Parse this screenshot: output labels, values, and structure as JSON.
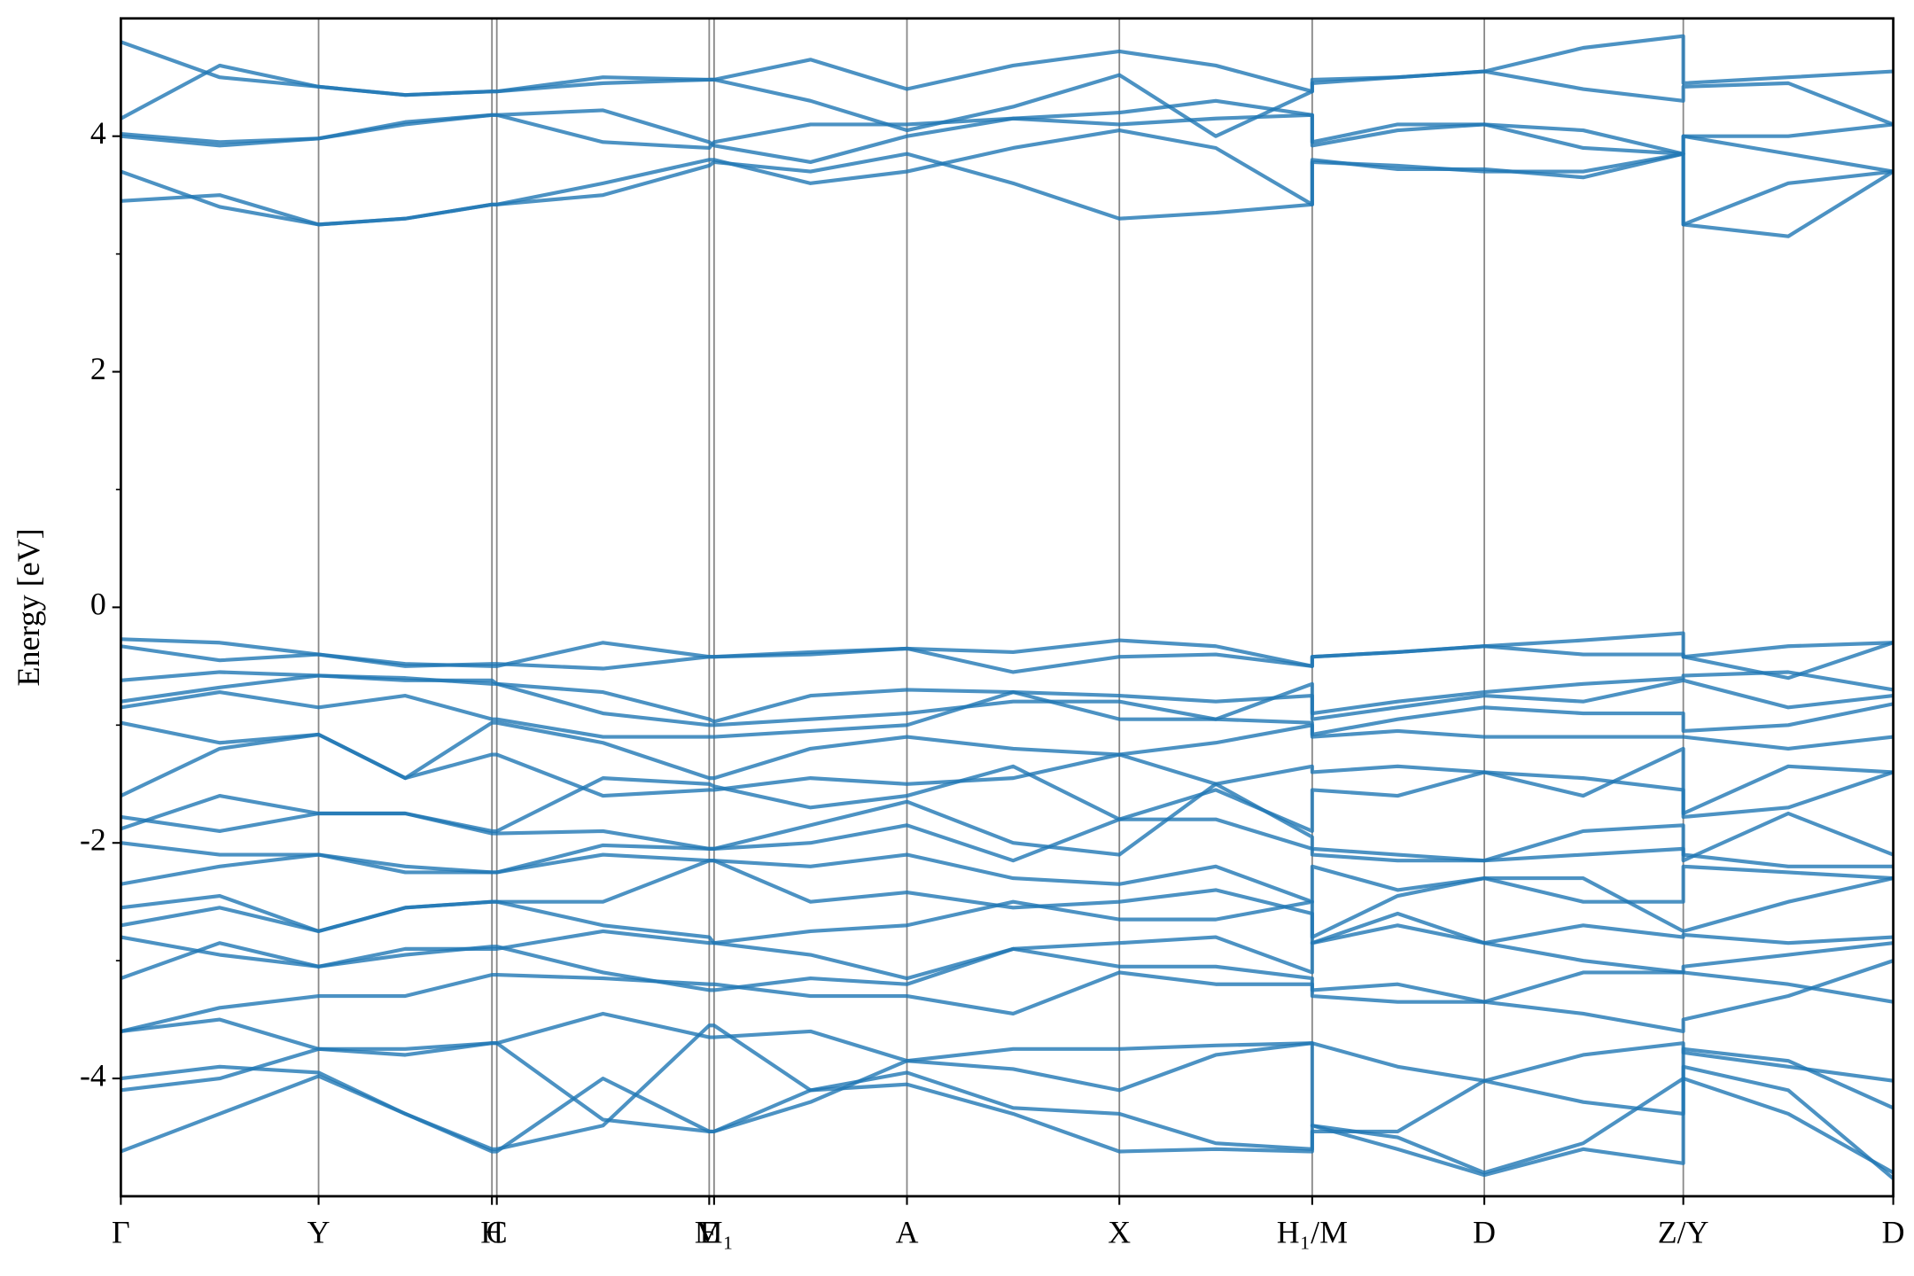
{
  "chart_data": {
    "type": "line",
    "ylabel": "Energy [eV]",
    "color": "#1f77b4",
    "xlim": [
      0,
      1.452
    ],
    "xticks": [
      {
        "value": 0,
        "label": "Γ"
      },
      {
        "value": 0.162,
        "label": "Y"
      },
      {
        "value": 0.304,
        "label": "H"
      },
      {
        "value": 0.308,
        "label": "C"
      },
      {
        "value": 0.482,
        "label": "E"
      },
      {
        "value": 0.486,
        "label": "M₁"
      },
      {
        "value": 0.644,
        "label": "A"
      },
      {
        "value": 0.818,
        "label": "X"
      },
      {
        "value": 0.976,
        "label": "H₁/M"
      },
      {
        "value": 1.117,
        "label": "D"
      },
      {
        "value": 1.28,
        "label": "Z/Y"
      },
      {
        "value": 1.452,
        "label": "D"
      }
    ],
    "ylim": [
      -5,
      5
    ],
    "yticks": [
      -4,
      -2,
      0,
      2,
      4
    ],
    "yminorticks": [
      -3,
      -1,
      1,
      3
    ],
    "x": [
      0,
      0.081,
      0.162,
      0.233,
      0.304,
      0.308,
      0.395,
      0.482,
      0.486,
      0.565,
      0.644,
      0.731,
      0.818,
      0.897,
      0.976,
      0.976,
      1.046,
      1.117,
      1.198,
      1.28,
      1.28,
      1.366,
      1.452
    ],
    "series": [
      {
        "values": [
          3.45,
          3.5,
          3.25,
          3.3,
          3.42,
          3.42,
          3.5,
          3.75,
          3.78,
          3.7,
          3.85,
          3.6,
          3.3,
          3.35,
          3.42,
          3.78,
          3.75,
          3.7,
          3.7,
          3.85,
          3.25,
          3.15,
          3.7
        ]
      },
      {
        "values": [
          3.7,
          3.4,
          3.25,
          3.3,
          3.42,
          3.42,
          3.6,
          3.8,
          3.8,
          3.6,
          3.7,
          3.9,
          4.05,
          3.9,
          3.42,
          3.8,
          3.72,
          3.72,
          3.65,
          3.85,
          3.25,
          3.6,
          3.7
        ]
      },
      {
        "values": [
          4.0,
          3.92,
          3.98,
          4.1,
          4.18,
          4.18,
          3.95,
          3.9,
          3.95,
          4.1,
          4.1,
          4.15,
          4.1,
          4.15,
          4.18,
          3.92,
          4.05,
          4.1,
          4.05,
          3.85,
          4.0,
          3.85,
          3.7
        ]
      },
      {
        "values": [
          4.02,
          3.95,
          3.98,
          4.12,
          4.18,
          4.18,
          4.22,
          3.95,
          3.92,
          3.78,
          4.0,
          4.15,
          4.2,
          4.3,
          4.18,
          3.95,
          4.1,
          4.1,
          3.9,
          3.85,
          4.0,
          4.0,
          4.1
        ]
      },
      {
        "values": [
          4.15,
          4.6,
          4.42,
          4.35,
          4.38,
          4.38,
          4.5,
          4.48,
          4.48,
          4.3,
          4.05,
          4.25,
          4.52,
          4.0,
          4.38,
          4.45,
          4.5,
          4.55,
          4.4,
          4.3,
          4.42,
          4.45,
          4.1
        ]
      },
      {
        "values": [
          4.8,
          4.5,
          4.42,
          4.35,
          4.38,
          4.38,
          4.45,
          4.48,
          4.48,
          4.65,
          4.4,
          4.6,
          4.72,
          4.6,
          4.38,
          4.48,
          4.5,
          4.55,
          4.75,
          4.85,
          4.45,
          4.5,
          4.55
        ]
      },
      {
        "values": [
          -0.27,
          -0.3,
          -0.4,
          -0.48,
          -0.5,
          -0.5,
          -0.3,
          -0.42,
          -0.42,
          -0.38,
          -0.35,
          -0.38,
          -0.28,
          -0.33,
          -0.5,
          -0.42,
          -0.38,
          -0.33,
          -0.28,
          -0.22,
          -0.42,
          -0.33,
          -0.3
        ]
      },
      {
        "values": [
          -0.33,
          -0.45,
          -0.4,
          -0.5,
          -0.48,
          -0.48,
          -0.52,
          -0.42,
          -0.42,
          -0.4,
          -0.35,
          -0.55,
          -0.42,
          -0.4,
          -0.5,
          -0.42,
          -0.38,
          -0.33,
          -0.4,
          -0.4,
          -0.42,
          -0.6,
          -0.3
        ]
      },
      {
        "values": [
          -0.62,
          -0.55,
          -0.58,
          -0.6,
          -0.65,
          -0.65,
          -0.72,
          -0.95,
          -0.97,
          -0.75,
          -0.7,
          -0.72,
          -0.75,
          -0.8,
          -0.75,
          -0.9,
          -0.8,
          -0.72,
          -0.65,
          -0.6,
          -0.58,
          -0.55,
          -0.7
        ]
      },
      {
        "values": [
          -0.8,
          -0.68,
          -0.58,
          -0.62,
          -0.62,
          -0.65,
          -0.9,
          -1.0,
          -1.0,
          -0.95,
          -0.9,
          -0.8,
          -0.8,
          -0.95,
          -0.65,
          -0.95,
          -0.85,
          -0.75,
          -0.8,
          -0.62,
          -0.62,
          -0.85,
          -0.75
        ]
      },
      {
        "values": [
          -0.85,
          -0.72,
          -0.85,
          -0.75,
          -0.95,
          -0.95,
          -1.1,
          -1.1,
          -1.1,
          -1.05,
          -1.0,
          -0.72,
          -0.95,
          -0.95,
          -0.98,
          -1.08,
          -0.95,
          -0.85,
          -0.9,
          -0.9,
          -1.05,
          -1.0,
          -0.82
        ]
      },
      {
        "values": [
          -0.98,
          -1.15,
          -1.08,
          -1.45,
          -0.98,
          -0.98,
          -1.15,
          -1.45,
          -1.45,
          -1.2,
          -1.1,
          -1.2,
          -1.25,
          -1.15,
          -1.0,
          -1.1,
          -1.05,
          -1.1,
          -1.1,
          -1.1,
          -1.1,
          -1.2,
          -1.1
        ]
      },
      {
        "values": [
          -1.6,
          -1.2,
          -1.08,
          -1.45,
          -1.25,
          -1.25,
          -1.6,
          -1.55,
          -1.55,
          -1.45,
          -1.5,
          -1.45,
          -1.25,
          -1.5,
          -1.35,
          -1.4,
          -1.35,
          -1.4,
          -1.6,
          -1.2,
          -1.75,
          -1.35,
          -1.4
        ]
      },
      {
        "values": [
          -1.78,
          -1.9,
          -1.75,
          -1.75,
          -1.9,
          -1.9,
          -1.45,
          -1.5,
          -1.52,
          -1.7,
          -1.6,
          -1.35,
          -1.8,
          -1.55,
          -1.9,
          -1.55,
          -1.6,
          -1.4,
          -1.45,
          -1.55,
          -1.78,
          -1.7,
          -1.4
        ]
      },
      {
        "values": [
          -1.88,
          -1.6,
          -1.75,
          -1.75,
          -1.92,
          -1.92,
          -1.9,
          -2.05,
          -2.05,
          -1.85,
          -1.65,
          -2.0,
          -2.1,
          -1.5,
          -1.95,
          -2.05,
          -2.1,
          -2.15,
          -1.9,
          -1.85,
          -2.15,
          -1.75,
          -2.1
        ]
      },
      {
        "values": [
          -2.0,
          -2.1,
          -2.1,
          -2.2,
          -2.25,
          -2.25,
          -2.02,
          -2.05,
          -2.05,
          -2.0,
          -1.85,
          -2.15,
          -1.8,
          -1.8,
          -2.05,
          -2.1,
          -2.15,
          -2.15,
          -2.1,
          -2.05,
          -2.1,
          -2.2,
          -2.2
        ]
      },
      {
        "values": [
          -2.35,
          -2.2,
          -2.1,
          -2.25,
          -2.25,
          -2.25,
          -2.1,
          -2.15,
          -2.15,
          -2.2,
          -2.1,
          -2.3,
          -2.35,
          -2.2,
          -2.5,
          -2.2,
          -2.4,
          -2.3,
          -2.5,
          -2.5,
          -2.2,
          -2.25,
          -2.3
        ]
      },
      {
        "values": [
          -2.55,
          -2.45,
          -2.75,
          -2.55,
          -2.5,
          -2.5,
          -2.5,
          -2.15,
          -2.15,
          -2.5,
          -2.42,
          -2.55,
          -2.5,
          -2.4,
          -2.6,
          -2.8,
          -2.45,
          -2.3,
          -2.3,
          -2.75,
          -2.75,
          -2.5,
          -2.3
        ]
      },
      {
        "values": [
          -2.7,
          -2.55,
          -2.75,
          -2.55,
          -2.5,
          -2.5,
          -2.7,
          -2.8,
          -2.85,
          -2.75,
          -2.7,
          -2.5,
          -2.65,
          -2.65,
          -2.5,
          -2.85,
          -2.6,
          -2.85,
          -2.7,
          -2.8,
          -2.78,
          -2.85,
          -2.8
        ]
      },
      {
        "values": [
          -2.8,
          -2.95,
          -3.05,
          -2.9,
          -2.9,
          -2.9,
          -2.75,
          -2.85,
          -2.85,
          -2.95,
          -3.15,
          -2.9,
          -2.85,
          -2.8,
          -3.1,
          -2.85,
          -2.7,
          -2.85,
          -3.0,
          -3.1,
          -3.05,
          -2.95,
          -2.85
        ]
      },
      {
        "values": [
          -3.15,
          -2.85,
          -3.05,
          -2.95,
          -2.88,
          -2.88,
          -3.1,
          -3.25,
          -3.25,
          -3.15,
          -3.2,
          -2.9,
          -3.05,
          -3.05,
          -3.15,
          -3.25,
          -3.2,
          -3.35,
          -3.1,
          -3.1,
          -3.1,
          -3.2,
          -3.35
        ]
      },
      {
        "values": [
          -3.6,
          -3.4,
          -3.3,
          -3.3,
          -3.12,
          -3.12,
          -3.15,
          -3.2,
          -3.2,
          -3.3,
          -3.3,
          -3.45,
          -3.1,
          -3.2,
          -3.2,
          -3.3,
          -3.35,
          -3.35,
          -3.45,
          -3.6,
          -3.5,
          -3.3,
          -3.0
        ]
      },
      {
        "values": [
          -3.6,
          -3.5,
          -3.75,
          -3.75,
          -3.7,
          -3.7,
          -3.45,
          -3.65,
          -3.65,
          -3.6,
          -3.85,
          -3.75,
          -3.75,
          -3.72,
          -3.7,
          -3.7,
          -3.9,
          -4.02,
          -3.8,
          -3.7,
          -3.78,
          -3.9,
          -4.02
        ]
      },
      {
        "values": [
          -4.0,
          -3.9,
          -3.95,
          -4.3,
          -4.62,
          -4.62,
          -4.0,
          -4.45,
          -4.45,
          -4.2,
          -3.85,
          -3.92,
          -4.1,
          -3.8,
          -3.7,
          -4.4,
          -4.5,
          -4.8,
          -4.55,
          -4.0,
          -4.0,
          -4.3,
          -4.8
        ]
      },
      {
        "values": [
          -4.1,
          -4.0,
          -3.75,
          -3.8,
          -3.7,
          -3.7,
          -4.35,
          -4.45,
          -4.45,
          -4.1,
          -3.95,
          -4.25,
          -4.3,
          -4.55,
          -4.6,
          -4.45,
          -4.45,
          -4.02,
          -4.2,
          -4.3,
          -3.75,
          -3.85,
          -4.25
        ]
      },
      {
        "values": [
          -4.62,
          -4.3,
          -3.98,
          -4.3,
          -4.6,
          -4.6,
          -4.4,
          -3.55,
          -3.55,
          -4.1,
          -4.05,
          -4.3,
          -4.62,
          -4.6,
          -4.62,
          -4.4,
          -4.6,
          -4.82,
          -4.6,
          -4.72,
          -3.9,
          -4.1,
          -4.85
        ]
      }
    ]
  }
}
